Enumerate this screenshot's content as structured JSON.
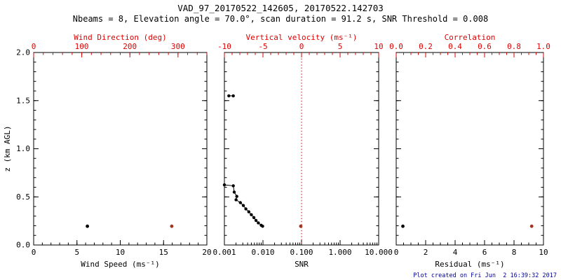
{
  "title": "VAD_97_20170522_142605, 20170522.142703",
  "subtitle": "Nbeams = 8, Elevation angle = 70.0°, scan duration = 91.2 s, SNR Threshold = 0.008",
  "footer": "Plot created on Fri Jun  2 16:39:32 2017",
  "colors": {
    "frame": "#000000",
    "red": "#dd0000",
    "marker_red": "#a23420",
    "footer": "#000099",
    "background": "#ffffff"
  },
  "chart_data": [
    {
      "id": "wind",
      "type": "scatter",
      "x_bottom": {
        "label": "Wind Speed (ms⁻¹)",
        "scale": "linear",
        "range": [
          0,
          20
        ],
        "major_ticks": [
          0,
          5,
          10,
          15,
          20
        ],
        "tick_labels": [
          "0",
          "5",
          "10",
          "15",
          "20"
        ],
        "minor_step": 1,
        "color": "frame"
      },
      "x_top": {
        "label": "Wind Direction (deg)",
        "scale": "linear",
        "range": [
          0,
          360
        ],
        "major_ticks": [
          0,
          100,
          200,
          300
        ],
        "tick_labels": [
          "0",
          "100",
          "200",
          "300"
        ],
        "minor_step": 20,
        "color": "red"
      },
      "y": {
        "label": "z (km AGL)",
        "scale": "linear",
        "range": [
          0,
          2
        ],
        "major_ticks": [
          0,
          0.5,
          1,
          1.5,
          2
        ],
        "tick_labels": [
          "0.0",
          "0.5",
          "1.0",
          "1.5",
          "2.0"
        ],
        "minor_step": 0.1,
        "show_labels": true
      },
      "series": [
        {
          "name": "wind-speed",
          "axis": "bottom",
          "color": "frame",
          "line": false,
          "marker_size": 2.4,
          "points": [
            [
              6.2,
              0.195
            ]
          ]
        },
        {
          "name": "wind-direction",
          "axis": "top",
          "color": "marker_red",
          "line": false,
          "marker_size": 2.4,
          "points": [
            [
              287,
              0.195
            ]
          ]
        }
      ]
    },
    {
      "id": "snr",
      "type": "line",
      "x_bottom": {
        "label": "SNR",
        "scale": "log",
        "range": [
          0.001,
          10
        ],
        "major_ticks": [
          0.001,
          0.01,
          0.1,
          1,
          10
        ],
        "tick_labels": [
          "0.001",
          "0.010",
          "0.100",
          "1.000",
          "10.000"
        ],
        "color": "frame"
      },
      "x_top": {
        "label": "Vertical velocity (ms⁻¹)",
        "scale": "linear",
        "range": [
          -10,
          10
        ],
        "major_ticks": [
          -10,
          -5,
          0,
          5,
          10
        ],
        "tick_labels": [
          "-10",
          "-5",
          "0",
          "5",
          "10"
        ],
        "minor_step": 1,
        "color": "red"
      },
      "y": {
        "label": "",
        "scale": "linear",
        "range": [
          0,
          2
        ],
        "major_ticks": [
          0,
          0.5,
          1,
          1.5,
          2
        ],
        "tick_labels": [
          "0.0",
          "0.5",
          "1.0",
          "1.5",
          "2.0"
        ],
        "minor_step": 0.1,
        "show_labels": false
      },
      "refline": {
        "axis": "top",
        "value": 0,
        "color": "red",
        "style": "dotted"
      },
      "series": [
        {
          "name": "snr-elevated-point",
          "axis": "bottom",
          "color": "frame",
          "line": true,
          "marker_size": 2.2,
          "points": [
            [
              0.0013,
              1.55
            ],
            [
              0.0017,
              1.55
            ]
          ]
        },
        {
          "name": "snr-profile",
          "axis": "bottom",
          "color": "frame",
          "line": true,
          "marker_size": 2.2,
          "points": [
            [
              0.001,
              0.625
            ],
            [
              0.0017,
              0.615
            ],
            [
              0.0018,
              0.55
            ],
            [
              0.0021,
              0.505
            ],
            [
              0.002,
              0.47
            ],
            [
              0.0026,
              0.44
            ],
            [
              0.0031,
              0.41
            ],
            [
              0.0036,
              0.375
            ],
            [
              0.0043,
              0.345
            ],
            [
              0.005,
              0.315
            ],
            [
              0.0058,
              0.285
            ],
            [
              0.0066,
              0.255
            ],
            [
              0.0076,
              0.23
            ],
            [
              0.009,
              0.205
            ],
            [
              0.0098,
              0.195
            ]
          ]
        },
        {
          "name": "vertical-velocity",
          "axis": "top",
          "color": "marker_red",
          "line": false,
          "marker_size": 2.4,
          "points": [
            [
              -0.1,
              0.195
            ]
          ]
        }
      ]
    },
    {
      "id": "residual",
      "type": "scatter",
      "x_bottom": {
        "label": "Residual (ms⁻¹)",
        "scale": "linear",
        "range": [
          0,
          10
        ],
        "major_ticks": [
          0,
          2,
          4,
          6,
          8,
          10
        ],
        "tick_labels": [
          "0",
          "2",
          "4",
          "6",
          "8",
          "10"
        ],
        "minor_step": 0.5,
        "color": "frame"
      },
      "x_top": {
        "label": "Correlation",
        "scale": "linear",
        "range": [
          0,
          1
        ],
        "major_ticks": [
          0,
          0.2,
          0.4,
          0.6,
          0.8,
          1
        ],
        "tick_labels": [
          "0.0",
          "0.2",
          "0.4",
          "0.6",
          "0.8",
          "1.0"
        ],
        "minor_step": 0.05,
        "color": "red"
      },
      "y": {
        "label": "",
        "scale": "linear",
        "range": [
          0,
          2
        ],
        "major_ticks": [
          0,
          0.5,
          1,
          1.5,
          2
        ],
        "tick_labels": [
          "0.0",
          "0.5",
          "1.0",
          "1.5",
          "2.0"
        ],
        "minor_step": 0.1,
        "show_labels": false
      },
      "series": [
        {
          "name": "residual",
          "axis": "bottom",
          "color": "frame",
          "line": false,
          "marker_size": 2.4,
          "points": [
            [
              0.45,
              0.195
            ]
          ]
        },
        {
          "name": "correlation",
          "axis": "top",
          "color": "marker_red",
          "line": false,
          "marker_size": 2.4,
          "points": [
            [
              0.92,
              0.195
            ]
          ]
        }
      ]
    }
  ]
}
